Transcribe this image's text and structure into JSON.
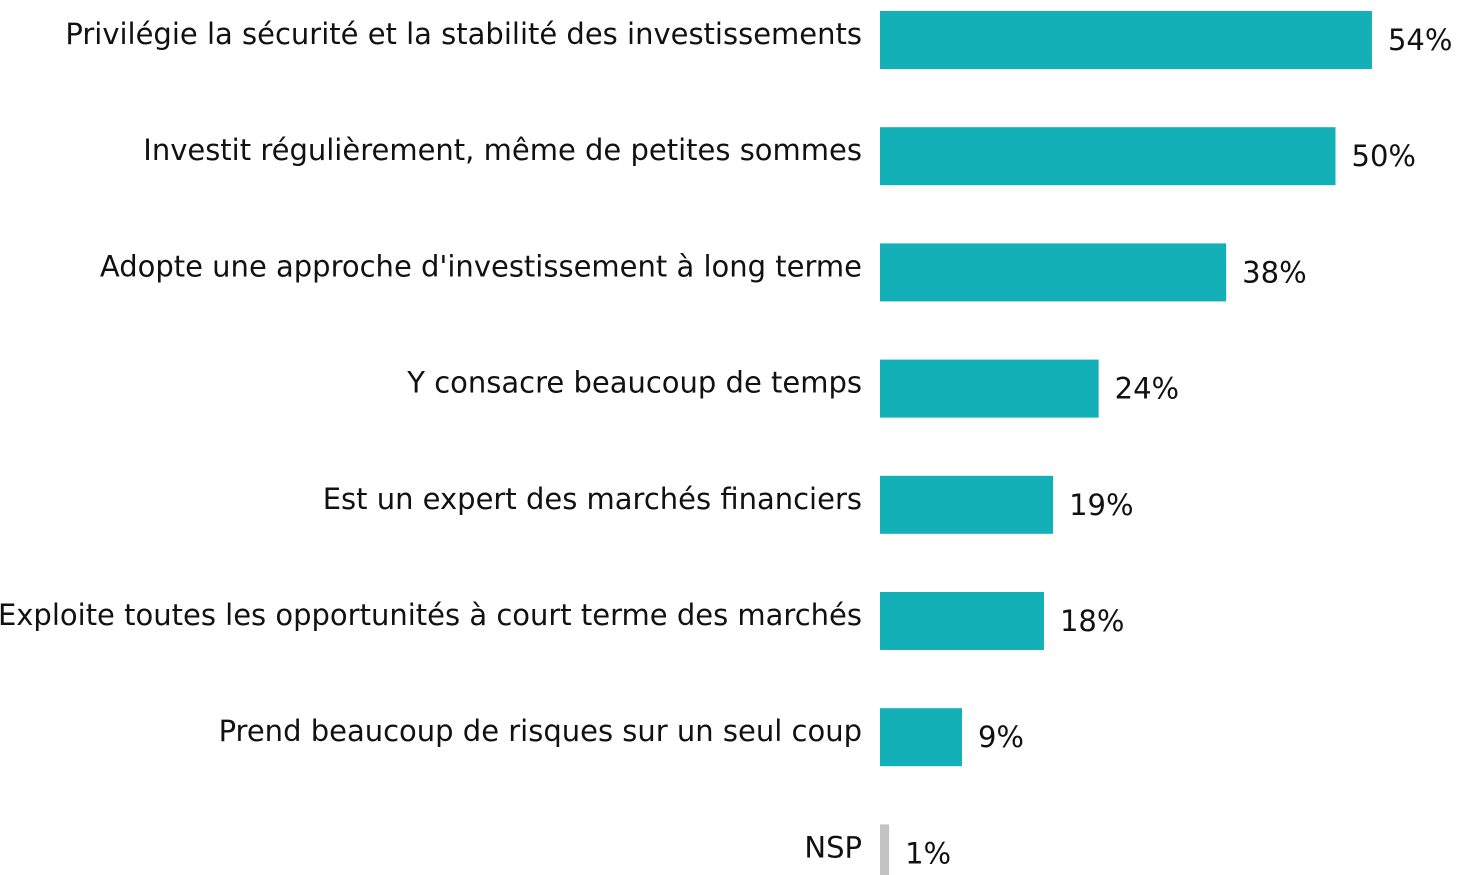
{
  "chart_data": {
    "type": "barh",
    "categories": [
      "Privilégie la sécurité et la stabilité des investissements",
      "Investit régulièrement, même de petites sommes",
      "Adopte une approche d'investissement à long terme",
      "Y consacre beaucoup de temps",
      "Est un expert des marchés financiers",
      "Exploite toutes les opportunités à court terme des marchés",
      "Prend beaucoup de risques sur un seul coup",
      "NSP"
    ],
    "values": [
      54,
      50,
      38,
      24,
      19,
      18,
      9,
      1
    ],
    "value_labels": [
      "54%",
      "50%",
      "38%",
      "24%",
      "19%",
      "18%",
      "9%",
      "1%"
    ],
    "colors": [
      "#13b0b7",
      "#13b0b7",
      "#13b0b7",
      "#13b0b7",
      "#13b0b7",
      "#13b0b7",
      "#13b0b7",
      "#c3c3c3"
    ]
  }
}
